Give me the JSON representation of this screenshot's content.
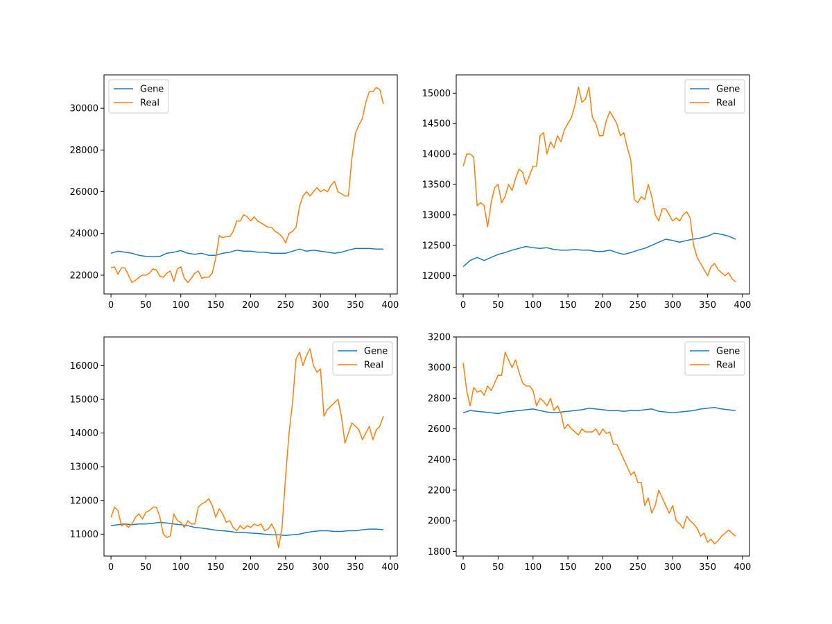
{
  "colors": {
    "gene": "#1f77b4",
    "real": "#ff7f0e",
    "axes": "#000000",
    "background": "#ffffff"
  },
  "chart_data": [
    {
      "type": "line",
      "xlim": [
        -10,
        410
      ],
      "ylim": [
        21100,
        31600
      ],
      "xticks": [
        0,
        50,
        100,
        150,
        200,
        250,
        300,
        350,
        400
      ],
      "yticks": [
        22000,
        24000,
        26000,
        28000,
        30000
      ],
      "grid": false,
      "legend_position": "upper left",
      "series": [
        {
          "name": "Gene",
          "x": [
            0,
            10,
            20,
            30,
            40,
            50,
            60,
            70,
            80,
            90,
            100,
            110,
            120,
            130,
            140,
            150,
            160,
            170,
            180,
            190,
            200,
            210,
            220,
            230,
            240,
            250,
            260,
            270,
            280,
            290,
            300,
            310,
            320,
            330,
            340,
            350,
            360,
            370,
            380,
            390
          ],
          "y": [
            23050,
            23150,
            23100,
            23050,
            22950,
            22900,
            22880,
            22900,
            23050,
            23100,
            23180,
            23050,
            23000,
            23050,
            22950,
            22950,
            23050,
            23100,
            23200,
            23150,
            23150,
            23100,
            23100,
            23050,
            23050,
            23050,
            23150,
            23250,
            23150,
            23200,
            23150,
            23100,
            23050,
            23100,
            23200,
            23280,
            23280,
            23280,
            23250,
            23250
          ]
        },
        {
          "name": "Real",
          "x": [
            0,
            5,
            10,
            15,
            20,
            25,
            30,
            35,
            40,
            45,
            50,
            55,
            60,
            65,
            70,
            75,
            80,
            85,
            90,
            95,
            100,
            105,
            110,
            115,
            120,
            125,
            130,
            135,
            140,
            145,
            150,
            155,
            160,
            165,
            170,
            175,
            180,
            185,
            190,
            195,
            200,
            205,
            210,
            215,
            220,
            225,
            230,
            235,
            240,
            245,
            250,
            255,
            260,
            265,
            270,
            275,
            280,
            285,
            290,
            295,
            300,
            305,
            310,
            315,
            320,
            325,
            330,
            335,
            340,
            345,
            350,
            355,
            360,
            365,
            370,
            375,
            380,
            385,
            390
          ],
          "y": [
            22350,
            22400,
            22050,
            22350,
            22350,
            22000,
            21650,
            21750,
            21900,
            22000,
            22000,
            22100,
            22300,
            22250,
            21950,
            21900,
            22100,
            22200,
            21700,
            22300,
            22400,
            21850,
            21650,
            21850,
            22100,
            22200,
            21850,
            21900,
            21900,
            22100,
            22800,
            23900,
            23800,
            23850,
            23850,
            24100,
            24600,
            24600,
            24900,
            24800,
            24600,
            24800,
            24600,
            24500,
            24400,
            24300,
            24300,
            24100,
            24000,
            23850,
            23550,
            24000,
            24100,
            24300,
            25300,
            25800,
            26000,
            25800,
            26000,
            26200,
            26000,
            26100,
            26000,
            26300,
            26500,
            26000,
            25900,
            25800,
            25800,
            27600,
            28800,
            29200,
            29500,
            30300,
            30800,
            30800,
            31000,
            30900,
            30200
          ]
        }
      ]
    },
    {
      "type": "line",
      "xlim": [
        -10,
        410
      ],
      "ylim": [
        11700,
        15300
      ],
      "xticks": [
        0,
        50,
        100,
        150,
        200,
        250,
        300,
        350,
        400
      ],
      "yticks": [
        12000,
        12500,
        13000,
        13500,
        14000,
        14500,
        15000
      ],
      "grid": false,
      "legend_position": "upper right",
      "series": [
        {
          "name": "Gene",
          "x": [
            0,
            10,
            20,
            30,
            40,
            50,
            60,
            70,
            80,
            90,
            100,
            110,
            120,
            130,
            140,
            150,
            160,
            170,
            180,
            190,
            200,
            210,
            220,
            230,
            240,
            250,
            260,
            270,
            280,
            290,
            300,
            310,
            320,
            330,
            340,
            350,
            360,
            370,
            380,
            390
          ],
          "y": [
            12150,
            12250,
            12300,
            12250,
            12300,
            12350,
            12380,
            12420,
            12450,
            12480,
            12460,
            12450,
            12460,
            12430,
            12420,
            12420,
            12430,
            12420,
            12420,
            12400,
            12400,
            12420,
            12380,
            12350,
            12380,
            12420,
            12450,
            12500,
            12550,
            12600,
            12580,
            12550,
            12580,
            12600,
            12620,
            12650,
            12700,
            12680,
            12650,
            12600
          ]
        },
        {
          "name": "Real",
          "x": [
            0,
            5,
            10,
            15,
            20,
            25,
            30,
            35,
            40,
            45,
            50,
            55,
            60,
            65,
            70,
            75,
            80,
            85,
            90,
            95,
            100,
            105,
            110,
            115,
            120,
            125,
            130,
            135,
            140,
            145,
            150,
            155,
            160,
            165,
            170,
            175,
            180,
            185,
            190,
            195,
            200,
            205,
            210,
            215,
            220,
            225,
            230,
            235,
            240,
            245,
            250,
            255,
            260,
            265,
            270,
            275,
            280,
            285,
            290,
            295,
            300,
            305,
            310,
            315,
            320,
            325,
            330,
            335,
            340,
            345,
            350,
            355,
            360,
            365,
            370,
            375,
            380,
            385,
            390
          ],
          "y": [
            13800,
            14000,
            14000,
            13950,
            13150,
            13200,
            13150,
            12800,
            13200,
            13450,
            13500,
            13200,
            13300,
            13500,
            13400,
            13600,
            13750,
            13700,
            13500,
            13650,
            13800,
            13800,
            14300,
            14350,
            14000,
            14200,
            14100,
            14300,
            14200,
            14400,
            14500,
            14600,
            14800,
            15100,
            14850,
            14900,
            15100,
            14600,
            14500,
            14300,
            14300,
            14550,
            14700,
            14600,
            14500,
            14300,
            14350,
            14100,
            13900,
            13250,
            13200,
            13300,
            13250,
            13500,
            13300,
            13000,
            12900,
            13100,
            13100,
            13000,
            12900,
            12950,
            12900,
            13000,
            13050,
            12950,
            12500,
            12300,
            12200,
            12100,
            12000,
            12150,
            12200,
            12100,
            12050,
            12000,
            12050,
            11950,
            11900
          ]
        }
      ]
    },
    {
      "type": "line",
      "xlim": [
        -10,
        410
      ],
      "ylim": [
        10350,
        16850
      ],
      "xticks": [
        0,
        50,
        100,
        150,
        200,
        250,
        300,
        350,
        400
      ],
      "yticks": [
        11000,
        12000,
        13000,
        14000,
        15000,
        16000
      ],
      "grid": false,
      "legend_position": "upper right",
      "series": [
        {
          "name": "Gene",
          "x": [
            0,
            10,
            20,
            30,
            40,
            50,
            60,
            70,
            80,
            90,
            100,
            110,
            120,
            130,
            140,
            150,
            160,
            170,
            180,
            190,
            200,
            210,
            220,
            230,
            240,
            250,
            260,
            270,
            280,
            290,
            300,
            310,
            320,
            330,
            340,
            350,
            360,
            370,
            380,
            390
          ],
          "y": [
            11250,
            11280,
            11300,
            11280,
            11300,
            11300,
            11320,
            11350,
            11330,
            11300,
            11280,
            11250,
            11200,
            11180,
            11150,
            11120,
            11100,
            11080,
            11050,
            11050,
            11030,
            11020,
            11000,
            10980,
            10980,
            10960,
            10980,
            11000,
            11050,
            11080,
            11100,
            11100,
            11080,
            11080,
            11100,
            11100,
            11130,
            11150,
            11150,
            11130
          ]
        },
        {
          "name": "Real",
          "x": [
            0,
            5,
            10,
            15,
            20,
            25,
            30,
            35,
            40,
            45,
            50,
            55,
            60,
            65,
            70,
            75,
            80,
            85,
            90,
            95,
            100,
            105,
            110,
            115,
            120,
            125,
            130,
            135,
            140,
            145,
            150,
            155,
            160,
            165,
            170,
            175,
            180,
            185,
            190,
            195,
            200,
            205,
            210,
            215,
            220,
            225,
            230,
            235,
            240,
            245,
            250,
            255,
            260,
            265,
            270,
            275,
            280,
            285,
            290,
            295,
            300,
            305,
            310,
            315,
            320,
            325,
            330,
            335,
            340,
            345,
            350,
            355,
            360,
            365,
            370,
            375,
            380,
            385,
            390
          ],
          "y": [
            11500,
            11800,
            11700,
            11250,
            11300,
            11200,
            11300,
            11500,
            11600,
            11450,
            11650,
            11700,
            11800,
            11800,
            11500,
            11000,
            10900,
            10950,
            11600,
            11400,
            11350,
            11200,
            11400,
            11300,
            11300,
            11800,
            11900,
            11950,
            12050,
            11850,
            11500,
            11750,
            11600,
            11350,
            11400,
            11200,
            11100,
            11250,
            11150,
            11250,
            11200,
            11300,
            11250,
            11300,
            11100,
            11150,
            11300,
            11100,
            10600,
            11200,
            12700,
            14000,
            14900,
            16200,
            16400,
            16000,
            16300,
            16500,
            16000,
            15800,
            15900,
            14500,
            14700,
            14800,
            14900,
            15000,
            14500,
            13700,
            14000,
            14300,
            14200,
            14100,
            13800,
            14000,
            14200,
            13800,
            14100,
            14200,
            14500
          ]
        }
      ]
    },
    {
      "type": "line",
      "xlim": [
        -10,
        410
      ],
      "ylim": [
        1770,
        3200
      ],
      "xticks": [
        0,
        50,
        100,
        150,
        200,
        250,
        300,
        350,
        400
      ],
      "yticks": [
        1800,
        2000,
        2200,
        2400,
        2600,
        2800,
        3000,
        3200
      ],
      "grid": false,
      "legend_position": "upper right",
      "series": [
        {
          "name": "Gene",
          "x": [
            0,
            10,
            20,
            30,
            40,
            50,
            60,
            70,
            80,
            90,
            100,
            110,
            120,
            130,
            140,
            150,
            160,
            170,
            180,
            190,
            200,
            210,
            220,
            230,
            240,
            250,
            260,
            270,
            280,
            290,
            300,
            310,
            320,
            330,
            340,
            350,
            360,
            370,
            380,
            390
          ],
          "y": [
            2705,
            2720,
            2715,
            2710,
            2705,
            2700,
            2710,
            2715,
            2720,
            2725,
            2730,
            2720,
            2710,
            2705,
            2710,
            2715,
            2720,
            2725,
            2735,
            2730,
            2725,
            2720,
            2720,
            2715,
            2720,
            2720,
            2725,
            2730,
            2715,
            2710,
            2705,
            2710,
            2715,
            2720,
            2730,
            2735,
            2740,
            2730,
            2725,
            2720
          ]
        },
        {
          "name": "Real",
          "x": [
            0,
            5,
            10,
            15,
            20,
            25,
            30,
            35,
            40,
            45,
            50,
            55,
            60,
            65,
            70,
            75,
            80,
            85,
            90,
            95,
            100,
            105,
            110,
            115,
            120,
            125,
            130,
            135,
            140,
            145,
            150,
            155,
            160,
            165,
            170,
            175,
            180,
            185,
            190,
            195,
            200,
            205,
            210,
            215,
            220,
            225,
            230,
            235,
            240,
            245,
            250,
            255,
            260,
            265,
            270,
            275,
            280,
            285,
            290,
            295,
            300,
            305,
            310,
            315,
            320,
            325,
            330,
            335,
            340,
            345,
            350,
            355,
            360,
            365,
            370,
            375,
            380,
            385,
            390
          ],
          "y": [
            3030,
            2850,
            2750,
            2870,
            2840,
            2850,
            2820,
            2880,
            2850,
            2900,
            2950,
            2950,
            3100,
            3050,
            3000,
            3050,
            2970,
            2900,
            2880,
            2880,
            2850,
            2750,
            2800,
            2780,
            2750,
            2800,
            2720,
            2750,
            2700,
            2600,
            2630,
            2600,
            2580,
            2560,
            2600,
            2580,
            2580,
            2580,
            2600,
            2560,
            2600,
            2570,
            2580,
            2500,
            2500,
            2450,
            2400,
            2350,
            2300,
            2320,
            2250,
            2250,
            2100,
            2150,
            2050,
            2100,
            2200,
            2150,
            2100,
            2050,
            2100,
            2000,
            1980,
            1950,
            2030,
            2000,
            1980,
            1950,
            1900,
            1920,
            1860,
            1880,
            1850,
            1870,
            1900,
            1920,
            1940,
            1920,
            1900
          ]
        }
      ]
    }
  ]
}
